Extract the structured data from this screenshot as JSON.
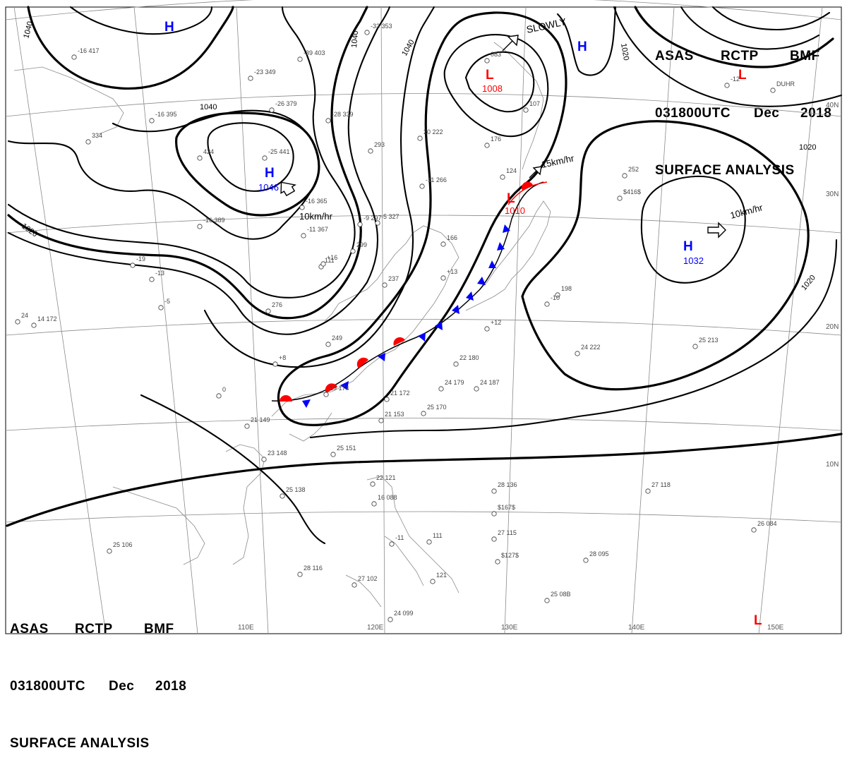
{
  "header": {
    "line1": [
      "ASAS",
      "RCTP",
      "BMF"
    ],
    "line2": [
      "031800UTC",
      "Dec",
      "2018"
    ],
    "line3": "SURFACE ANALYSIS"
  },
  "grid_labels": {
    "lon": [
      "110E",
      "120E",
      "130E",
      "140E",
      "150E"
    ],
    "lat": [
      "40N",
      "30N",
      "20N",
      "10N"
    ]
  },
  "isobar_labels": [
    "1040",
    "1040",
    "1040",
    "1040",
    "1020",
    "1020",
    "1020",
    "1020"
  ],
  "pressure_centers": [
    {
      "type": "H",
      "value": "1046"
    },
    {
      "type": "H",
      "value": ""
    },
    {
      "type": "H",
      "value": ""
    },
    {
      "type": "H",
      "value": "1032"
    },
    {
      "type": "L",
      "value": "1008"
    },
    {
      "type": "L",
      "value": "1010"
    },
    {
      "type": "L",
      "value": ""
    },
    {
      "type": "L",
      "value": ""
    }
  ],
  "motions": [
    "10km/hr",
    "SLOWLY",
    "15km/hr",
    "10km/hr"
  ],
  "stations": [
    "-16 417",
    "-33 353",
    "-39 403",
    "-23 349",
    "-26 379",
    "-28 339",
    "-16 395",
    "334",
    "424",
    "-25 441",
    "20 222",
    "293",
    "176",
    "083",
    "107",
    "-11 266",
    "124",
    "-16 365",
    "-16 389",
    "-11 367",
    "-9 297",
    "-5 327",
    "299",
    "166",
    "-19",
    "111",
    "252",
    "237",
    "-5",
    "276",
    "14 172",
    "0",
    "24",
    "249",
    "19 174",
    "21 172",
    "22 180",
    "24 179",
    "24 187",
    "25 170",
    "21 153",
    "21 149",
    "23 148",
    "25 151",
    "198",
    "24 222",
    "25 213",
    "25 138",
    "28 136",
    "22 121",
    "16 088",
    "27 115",
    "27 118",
    "26 084",
    "25 106",
    "28 116",
    "27 102",
    "121",
    "111",
    "28 095",
    "25 08B",
    "24 099",
    "+16",
    "+13",
    "+12",
    "+8",
    "-13",
    "-12",
    "-11",
    "-10",
    "$416$",
    "$167$",
    "$127$",
    "DUHR"
  ],
  "colors": {
    "warm_front": "#ff0000",
    "cold_front": "#0000ff",
    "high": "#0000ff",
    "low": "#ff0000"
  }
}
